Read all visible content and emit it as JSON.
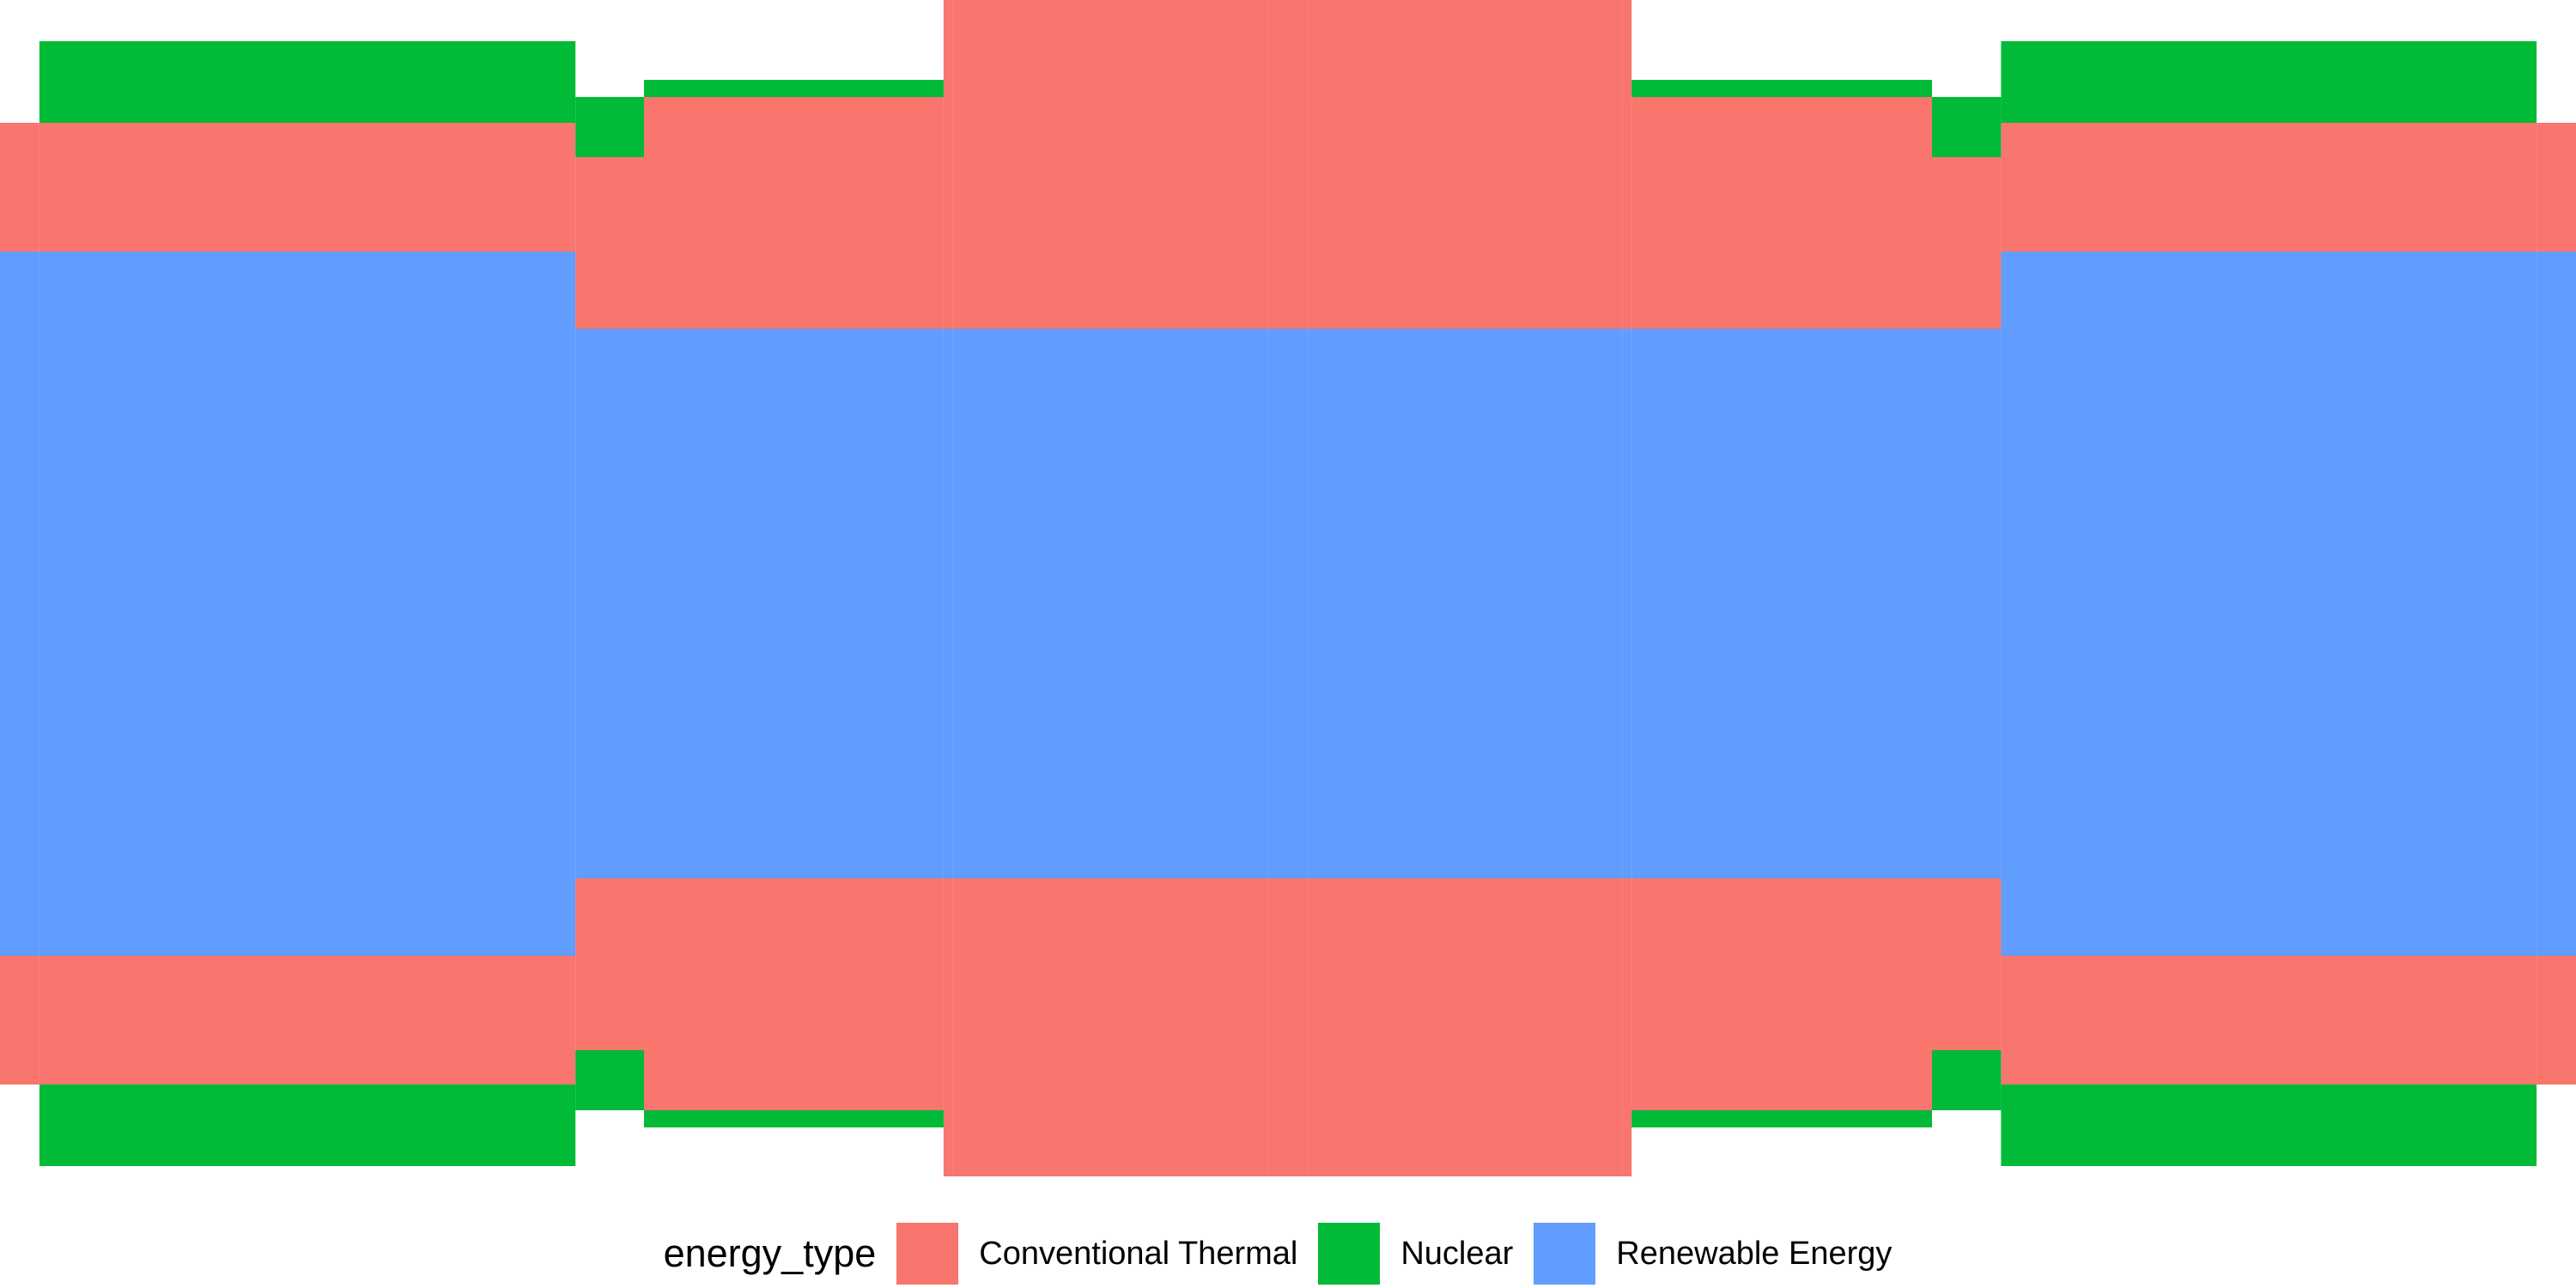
{
  "chart_data": {
    "type": "area",
    "layout": "symmetric-stacked",
    "colors": {
      "Conventional Thermal": "#F8766D",
      "Nuclear": "#00BA38",
      "Renewable Energy": "#619CFF"
    },
    "legend": {
      "title": "energy_type",
      "position": "bottom",
      "items": [
        "Conventional Thermal",
        "Nuclear",
        "Renewable Energy"
      ]
    },
    "series": [
      {
        "name": "Renewable Energy",
        "bands": [
          {
            "x": [
              0,
              0.2234
            ],
            "value": 410
          },
          {
            "x": [
              0.2234,
              0.7768
            ],
            "value": 320
          },
          {
            "x": [
              0.7768,
              1.0
            ],
            "value": 410
          }
        ]
      },
      {
        "name": "Conventional Thermal",
        "bands": [
          {
            "x": [
              0,
              0.2234
            ],
            "value": 150
          },
          {
            "x": [
              0.2234,
              0.25
            ],
            "value": 200
          },
          {
            "x": [
              0.25,
              0.3663
            ],
            "value": 270
          },
          {
            "x": [
              0.3663,
              0.6334
            ],
            "value": 410
          },
          {
            "x": [
              0.6334,
              0.75
            ],
            "value": 270
          },
          {
            "x": [
              0.75,
              0.7768
            ],
            "value": 200
          },
          {
            "x": [
              0.7768,
              1.0
            ],
            "value": 150
          }
        ]
      },
      {
        "name": "Nuclear",
        "bands": [
          {
            "x": [
              0.0153,
              0.2234
            ],
            "value": 95
          },
          {
            "x": [
              0.2234,
              0.25
            ],
            "value": 70
          },
          {
            "x": [
              0.25,
              0.3663
            ],
            "value": 20
          },
          {
            "x": [
              0.6334,
              0.75
            ],
            "value": 20
          },
          {
            "x": [
              0.75,
              0.7768
            ],
            "value": 70
          },
          {
            "x": [
              0.7768,
              0.9847
            ],
            "value": 95
          }
        ]
      },
      {
        "name": "Renewable Energy",
        "bands": [
          {
            "x": [
              0.3701,
              0.6298
            ],
            "value": 50
          },
          {
            "x": [
              0.4923,
              0.5077
            ],
            "value": 15
          }
        ]
      }
    ],
    "inner_marks": [
      {
        "series": "Conventional Thermal",
        "x": [
          0.4986,
          0.5014
        ],
        "value": 15
      }
    ]
  }
}
